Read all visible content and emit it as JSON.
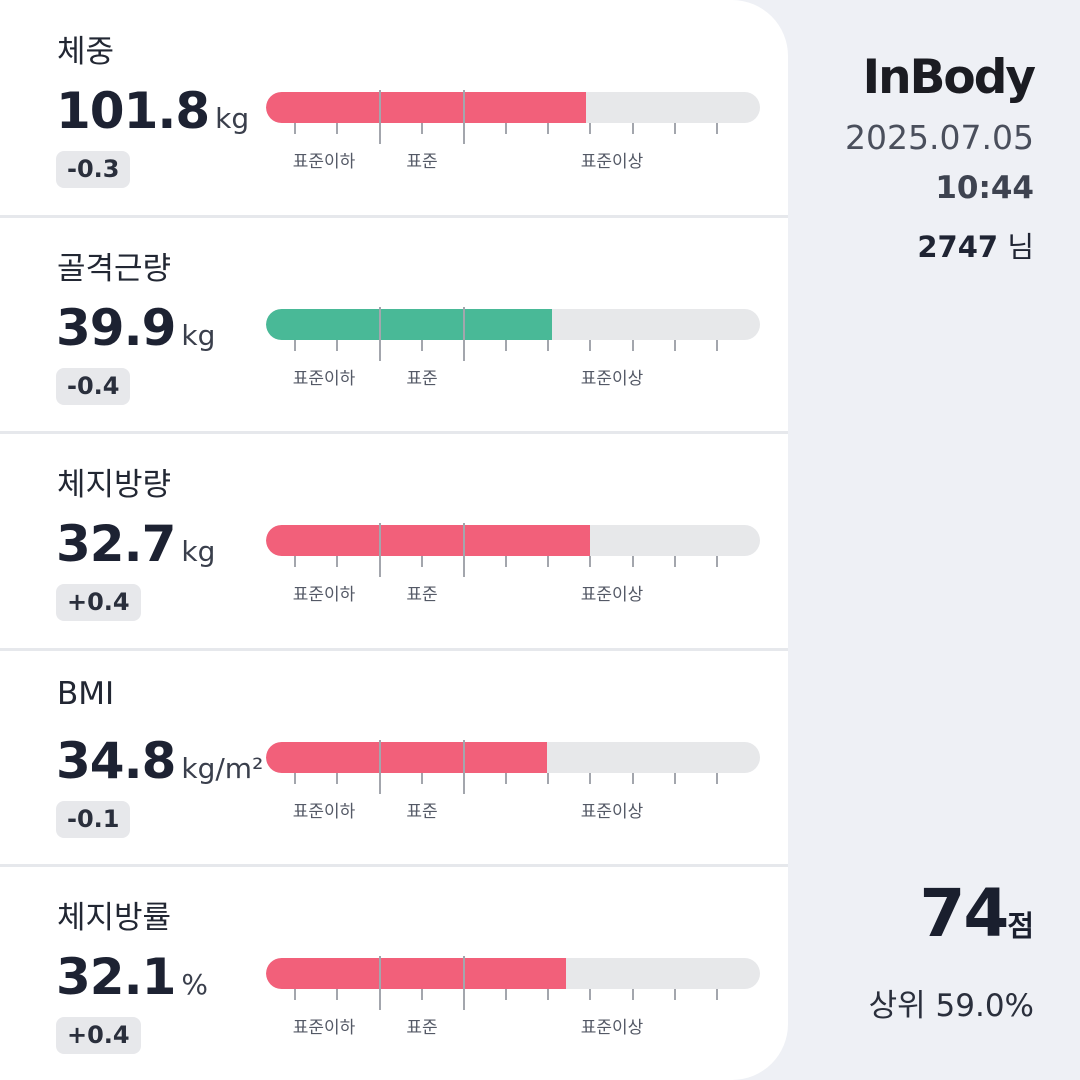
{
  "colors": {
    "over": "#f2607a",
    "normal": "#49b997",
    "track": "#e7e8ea",
    "background": "#eef0f5"
  },
  "scale": {
    "labels": [
      "표준이하",
      "표준",
      "표준이상"
    ]
  },
  "metrics": [
    {
      "title": "체중",
      "value": "101.8",
      "unit": "kg",
      "delta": "-0.3",
      "fill": 0.647,
      "status": "over"
    },
    {
      "title": "골격근량",
      "value": "39.9",
      "unit": "kg",
      "delta": "-0.4",
      "fill": 0.579,
      "status": "normal"
    },
    {
      "title": "체지방량",
      "value": "32.7",
      "unit": "kg",
      "delta": "+0.4",
      "fill": 0.656,
      "status": "over"
    },
    {
      "title": "BMI",
      "value": "34.8",
      "unit": "kg/m²",
      "delta": "-0.1",
      "fill": 0.569,
      "status": "over"
    },
    {
      "title": "체지방률",
      "value": "32.1",
      "unit": "%",
      "delta": "+0.4",
      "fill": 0.607,
      "status": "over"
    }
  ],
  "header": {
    "logo": "InBody",
    "date": "2025.07.05",
    "time": "10:44",
    "user_id": "2747",
    "user_suffix": "님"
  },
  "score": {
    "value": "74",
    "unit": "점",
    "rank": "상위 59.0%"
  }
}
